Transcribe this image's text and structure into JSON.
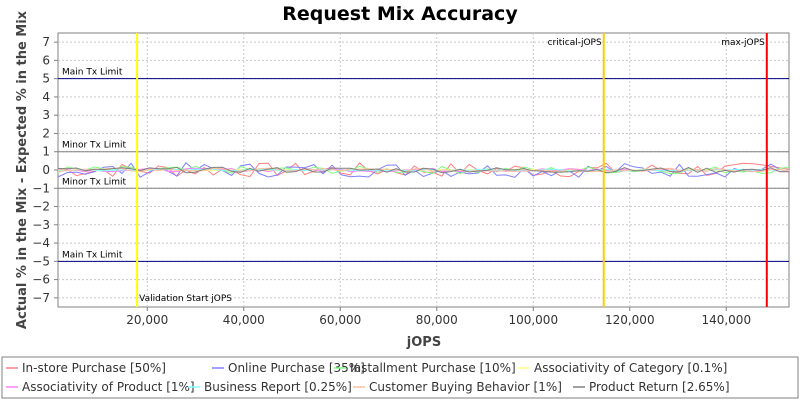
{
  "chart_data": {
    "type": "line",
    "title": "Request Mix Accuracy",
    "xlabel": "jOPS",
    "ylabel": "Actual % in the Mix - Expected % in the Mix",
    "xlim": [
      1500,
      153000
    ],
    "ylim": [
      -7.5,
      7.5
    ],
    "x_ticks": [
      "20,000",
      "40,000",
      "60,000",
      "80,000",
      "100,000",
      "120,000",
      "140,000"
    ],
    "y_ticks": [
      "7",
      "6",
      "5",
      "4",
      "3",
      "2",
      "1",
      "0",
      "-1",
      "-2",
      "-3",
      "-4",
      "-5",
      "-6",
      "-7"
    ],
    "grid": true,
    "legend_position": "bottom",
    "horizontal_lines": [
      {
        "y": 5,
        "label": "Main Tx Limit",
        "color": "#000080",
        "label_side": "above"
      },
      {
        "y": 1,
        "label": "Minor Tx Limit",
        "color": "#808080",
        "label_side": "above"
      },
      {
        "y": -1,
        "label": "Minor Tx Limit",
        "color": "#808080",
        "label_side": "above"
      },
      {
        "y": -5,
        "label": "Main Tx Limit",
        "color": "#000080",
        "label_side": "above"
      }
    ],
    "vertical_lines": [
      {
        "x": 17900,
        "label": "Validation Start jOPS",
        "color": "#ffff00",
        "label_pos": "bottom"
      },
      {
        "x": 114600,
        "label": "critical-jOPS",
        "color": "#ffcc00",
        "label_pos": "top"
      },
      {
        "x": 148400,
        "label": "max-jOPS",
        "color": "#ff0000",
        "label_pos": "top"
      }
    ],
    "series": [
      {
        "name": "In-store Purchase [50%]",
        "color": "#ff8080",
        "amp": 0.4
      },
      {
        "name": "Online Purchase [35%]",
        "color": "#8080ff",
        "amp": 0.4
      },
      {
        "name": "Installment Purchase [10%]",
        "color": "#80ff80",
        "amp": 0.2
      },
      {
        "name": "Associativity of Category [0.1%]",
        "color": "#ffff80",
        "amp": 0.05
      },
      {
        "name": "Associativity of Product [1%]",
        "color": "#ff80ff",
        "amp": 0.1
      },
      {
        "name": "Business Report [0.25%]",
        "color": "#80ffff",
        "amp": 0.05
      },
      {
        "name": "Customer Buying Behavior [1%]",
        "color": "#ffc0a0",
        "amp": 0.1
      },
      {
        "name": "Product Return [2.65%]",
        "color": "#808080",
        "amp": 0.15
      }
    ]
  }
}
